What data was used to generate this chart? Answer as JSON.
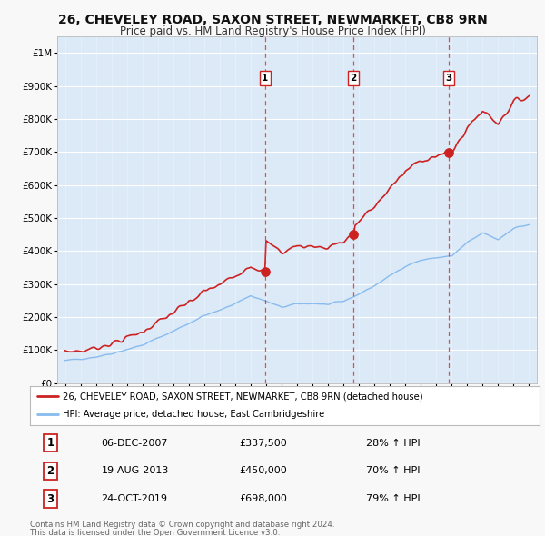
{
  "title": "26, CHEVELEY ROAD, SAXON STREET, NEWMARKET, CB8 9RN",
  "subtitle": "Price paid vs. HM Land Registry's House Price Index (HPI)",
  "title_fontsize": 10.5,
  "subtitle_fontsize": 9,
  "bg_color": "#f5f5f5",
  "plot_bg_color": "#dce9f7",
  "grid_color": "#ffffff",
  "legend_label_red": "26, CHEVELEY ROAD, SAXON STREET, NEWMARKET, CB8 9RN (detached house)",
  "legend_label_blue": "HPI: Average price, detached house, East Cambridgeshire",
  "sale_dates": [
    2007.93,
    2013.64,
    2019.81
  ],
  "sale_prices": [
    337500,
    450000,
    698000
  ],
  "sale_labels": [
    "1",
    "2",
    "3"
  ],
  "sale_label_dates": [
    "06-DEC-2007",
    "19-AUG-2013",
    "24-OCT-2019"
  ],
  "sale_price_labels": [
    "£337,500",
    "£450,000",
    "£698,000"
  ],
  "sale_pct_labels": [
    "28% ↑ HPI",
    "70% ↑ HPI",
    "79% ↑ HPI"
  ],
  "footer_line1": "Contains HM Land Registry data © Crown copyright and database right 2024.",
  "footer_line2": "This data is licensed under the Open Government Licence v3.0.",
  "red_color": "#cc2222",
  "blue_color": "#88bbee",
  "dashed_color": "#dd3333",
  "ylim_max": 1050000,
  "ylim_min": 0,
  "xlim_min": 1994.5,
  "xlim_max": 2025.5,
  "years_hpi": [
    1995.0,
    1995.08,
    1995.17,
    1995.25,
    1995.33,
    1995.42,
    1995.5,
    1995.58,
    1995.67,
    1995.75,
    1995.83,
    1995.92,
    1996.0,
    1996.08,
    1996.17,
    1996.25,
    1996.33,
    1996.42,
    1996.5,
    1996.58,
    1996.67,
    1996.75,
    1996.83,
    1996.92,
    1997.0,
    1997.08,
    1997.17,
    1997.25,
    1997.33,
    1997.42,
    1997.5,
    1997.58,
    1997.67,
    1997.75,
    1997.83,
    1997.92,
    1998.0,
    1998.08,
    1998.17,
    1998.25,
    1998.33,
    1998.42,
    1998.5,
    1998.58,
    1998.67,
    1998.75,
    1998.83,
    1998.92,
    1999.0,
    1999.08,
    1999.17,
    1999.25,
    1999.33,
    1999.42,
    1999.5,
    1999.58,
    1999.67,
    1999.75,
    1999.83,
    1999.92,
    2000.0,
    2000.08,
    2000.17,
    2000.25,
    2000.33,
    2000.42,
    2000.5,
    2000.58,
    2000.67,
    2000.75,
    2000.83,
    2000.92,
    2001.0,
    2001.08,
    2001.17,
    2001.25,
    2001.33,
    2001.42,
    2001.5,
    2001.58,
    2001.67,
    2001.75,
    2001.83,
    2001.92,
    2002.0,
    2002.08,
    2002.17,
    2002.25,
    2002.33,
    2002.42,
    2002.5,
    2002.58,
    2002.67,
    2002.75,
    2002.83,
    2002.92,
    2003.0,
    2003.08,
    2003.17,
    2003.25,
    2003.33,
    2003.42,
    2003.5,
    2003.58,
    2003.67,
    2003.75,
    2003.83,
    2003.92,
    2004.0,
    2004.08,
    2004.17,
    2004.25,
    2004.33,
    2004.42,
    2004.5,
    2004.58,
    2004.67,
    2004.75,
    2004.83,
    2004.92,
    2005.0,
    2005.08,
    2005.17,
    2005.25,
    2005.33,
    2005.42,
    2005.5,
    2005.58,
    2005.67,
    2005.75,
    2005.83,
    2005.92,
    2006.0,
    2006.08,
    2006.17,
    2006.25,
    2006.33,
    2006.42,
    2006.5,
    2006.58,
    2006.67,
    2006.75,
    2006.83,
    2006.92,
    2007.0,
    2007.08,
    2007.17,
    2007.25,
    2007.33,
    2007.42,
    2007.5,
    2007.58,
    2007.67,
    2007.75,
    2007.83,
    2007.92,
    2008.0,
    2008.08,
    2008.17,
    2008.25,
    2008.33,
    2008.42,
    2008.5,
    2008.58,
    2008.67,
    2008.75,
    2008.83,
    2008.92,
    2009.0,
    2009.08,
    2009.17,
    2009.25,
    2009.33,
    2009.42,
    2009.5,
    2009.58,
    2009.67,
    2009.75,
    2009.83,
    2009.92,
    2010.0,
    2010.08,
    2010.17,
    2010.25,
    2010.33,
    2010.42,
    2010.5,
    2010.58,
    2010.67,
    2010.75,
    2010.83,
    2010.92,
    2011.0,
    2011.08,
    2011.17,
    2011.25,
    2011.33,
    2011.42,
    2011.5,
    2011.58,
    2011.67,
    2011.75,
    2011.83,
    2011.92,
    2012.0,
    2012.08,
    2012.17,
    2012.25,
    2012.33,
    2012.42,
    2012.5,
    2012.58,
    2012.67,
    2012.75,
    2012.83,
    2012.92,
    2013.0,
    2013.08,
    2013.17,
    2013.25,
    2013.33,
    2013.42,
    2013.5,
    2013.58,
    2013.67,
    2013.75,
    2013.83,
    2013.92,
    2014.0,
    2014.08,
    2014.17,
    2014.25,
    2014.33,
    2014.42,
    2014.5,
    2014.58,
    2014.67,
    2014.75,
    2014.83,
    2014.92,
    2015.0,
    2015.08,
    2015.17,
    2015.25,
    2015.33,
    2015.42,
    2015.5,
    2015.58,
    2015.67,
    2015.75,
    2015.83,
    2015.92,
    2016.0,
    2016.08,
    2016.17,
    2016.25,
    2016.33,
    2016.42,
    2016.5,
    2016.58,
    2016.67,
    2016.75,
    2016.83,
    2016.92,
    2017.0,
    2017.08,
    2017.17,
    2017.25,
    2017.33,
    2017.42,
    2017.5,
    2017.58,
    2017.67,
    2017.75,
    2017.83,
    2017.92,
    2018.0,
    2018.08,
    2018.17,
    2018.25,
    2018.33,
    2018.42,
    2018.5,
    2018.58,
    2018.67,
    2018.75,
    2018.83,
    2018.92,
    2019.0,
    2019.08,
    2019.17,
    2019.25,
    2019.33,
    2019.42,
    2019.5,
    2019.58,
    2019.67,
    2019.75,
    2019.83,
    2019.92,
    2020.0,
    2020.08,
    2020.17,
    2020.25,
    2020.33,
    2020.42,
    2020.5,
    2020.58,
    2020.67,
    2020.75,
    2020.83,
    2020.92,
    2021.0,
    2021.08,
    2021.17,
    2021.25,
    2021.33,
    2021.42,
    2021.5,
    2021.58,
    2021.67,
    2021.75,
    2021.83,
    2021.92,
    2022.0,
    2022.08,
    2022.17,
    2022.25,
    2022.33,
    2022.42,
    2022.5,
    2022.58,
    2022.67,
    2022.75,
    2022.83,
    2022.92,
    2023.0,
    2023.08,
    2023.17,
    2023.25,
    2023.33,
    2023.42,
    2023.5,
    2023.58,
    2023.67,
    2023.75,
    2023.83,
    2023.92,
    2024.0,
    2024.08,
    2024.17,
    2024.25,
    2024.33,
    2024.42,
    2024.5,
    2024.58,
    2024.67,
    2024.75,
    2024.83,
    2024.92,
    2025.0
  ]
}
